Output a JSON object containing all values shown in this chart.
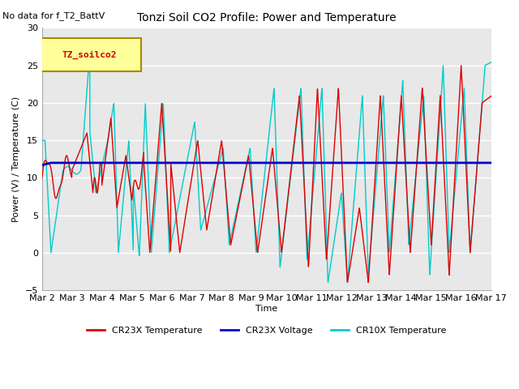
{
  "title": "Tonzi Soil CO2 Profile: Power and Temperature",
  "subtitle": "No data for f_T2_BattV",
  "ylabel": "Power (V) / Temperature (C)",
  "xlabel": "Time",
  "ylim": [
    -5,
    30
  ],
  "xlim": [
    0,
    15
  ],
  "plot_bg_color": "#e8e8e8",
  "fig_bg_color": "#ffffff",
  "grid_color": "#ffffff",
  "xtick_labels": [
    "Mar 2",
    "Mar 3",
    "Mar 4",
    "Mar 5",
    "Mar 6",
    "Mar 7",
    "Mar 8",
    "Mar 9",
    "Mar 10",
    "Mar 11",
    "Mar 12",
    "Mar 13",
    "Mar 14",
    "Mar 15",
    "Mar 16",
    "Mar 17"
  ],
  "legend_box_label": "TZ_soilco2",
  "legend_box_color": "#ffff99",
  "legend_box_border": "#aa8800",
  "cr23x_temp_color": "#dd0000",
  "cr23x_volt_color": "#0000cc",
  "cr10x_temp_color": "#00cccc"
}
